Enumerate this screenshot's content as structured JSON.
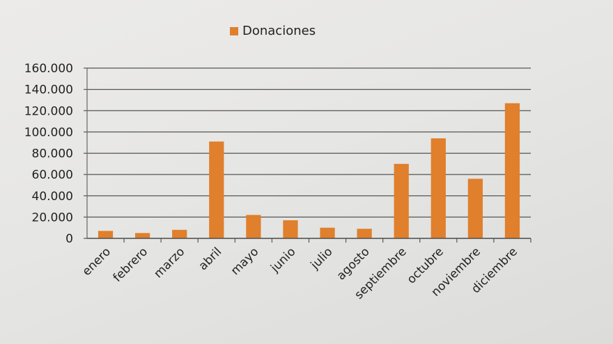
{
  "chart_data": {
    "type": "bar",
    "categories": [
      "enero",
      "febrero",
      "marzo",
      "abril",
      "mayo",
      "junio",
      "julio",
      "agosto",
      "septiembre",
      "octubre",
      "noviembre",
      "diciembre"
    ],
    "series": [
      {
        "name": "Donaciones",
        "values": [
          7000,
          5000,
          8000,
          91000,
          22000,
          17000,
          10000,
          9000,
          70000,
          94000,
          56000,
          127000
        ],
        "color": "#e07f2c"
      }
    ],
    "y_tick_labels": [
      "0",
      "20.000",
      "40.000",
      "60.000",
      "80.000",
      "100.000",
      "120.000",
      "140.000",
      "160.000"
    ],
    "ylim": [
      0,
      160000
    ],
    "grid": true,
    "legend_position": "top-center"
  }
}
